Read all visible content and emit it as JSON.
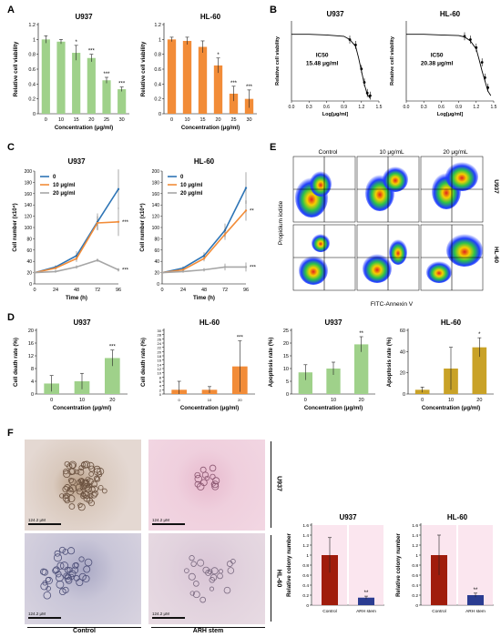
{
  "panel_labels": [
    "A",
    "B",
    "C",
    "D",
    "E",
    "F"
  ],
  "cell_line_labels": {
    "u937": "U937",
    "hl60": "HL-60"
  },
  "flow": {
    "col_labels": [
      "Control",
      "10 μg/mL",
      "20 μg/mL"
    ],
    "row_labels": [
      "U937",
      "HL-60"
    ],
    "xlabel": "FITC-Annexin V",
    "ylabel": "Propidium iodide"
  },
  "micro": {
    "scale_text": "124.2 μM",
    "col_labels": [
      "Control",
      "ARH stem"
    ],
    "row_labels": [
      "U937",
      "HL-60"
    ]
  },
  "colors": {
    "green": "#9fd18a",
    "orange": "#f28c38",
    "olive": "#c9a227",
    "darkred": "#a01c0c",
    "navy": "#2b3c91",
    "blue": "#2e75b6",
    "gray": "#a6a6a6",
    "pink": "#f9d5e5"
  },
  "chart_data": [
    {
      "id": "A1",
      "type": "bar",
      "title": "U937",
      "categories": [
        "0",
        "10",
        "15",
        "20",
        "25",
        "30"
      ],
      "values": [
        1.0,
        0.97,
        0.82,
        0.75,
        0.45,
        0.33
      ],
      "errors": [
        0.05,
        0.03,
        0.1,
        0.05,
        0.04,
        0.03
      ],
      "sig": [
        "",
        "",
        "*",
        "***",
        "***",
        "***"
      ],
      "ylim": [
        0,
        1.2
      ],
      "yticks": [
        "0",
        "0.2",
        "0.4",
        "0.6",
        "0.8",
        "1",
        "1.2"
      ],
      "xlabel": "Concentration (μg/ml)",
      "ylabel": "Relative cell viability",
      "color": "green"
    },
    {
      "id": "A2",
      "type": "bar",
      "title": "HL-60",
      "categories": [
        "0",
        "10",
        "15",
        "20",
        "25",
        "30"
      ],
      "values": [
        1.0,
        0.98,
        0.9,
        0.65,
        0.27,
        0.2
      ],
      "errors": [
        0.03,
        0.05,
        0.08,
        0.1,
        0.1,
        0.12
      ],
      "sig": [
        "",
        "",
        "",
        "*",
        "***",
        "***"
      ],
      "ylim": [
        0,
        1.2
      ],
      "yticks": [
        "0",
        "0.2",
        "0.4",
        "0.6",
        "0.8",
        "1",
        "1.2"
      ],
      "xlabel": "Concentration (μg/ml)",
      "ylabel": "Relative cell viability",
      "color": "orange"
    },
    {
      "id": "B1",
      "type": "line",
      "title": "U937",
      "x": [
        0.0,
        0.3,
        0.6,
        0.9,
        1.0,
        1.1,
        1.15,
        1.2,
        1.25,
        1.3,
        1.35
      ],
      "y": [
        100,
        100,
        99,
        97,
        92,
        82,
        65,
        45,
        25,
        10,
        4
      ],
      "xlim": [
        0,
        1.5
      ],
      "ylim": [
        0,
        120
      ],
      "xticks": [
        "0.0",
        "0.3",
        "0.6",
        "0.9",
        "1.2",
        "1.5"
      ],
      "xlabel": "Log[μg/ml]",
      "ylabel": "Relative cell viability",
      "annotation": "IC50\n15.48 μg/ml",
      "points": [
        [
          1.0,
          92
        ],
        [
          1.1,
          84
        ],
        [
          1.2,
          48
        ],
        [
          1.25,
          28
        ],
        [
          1.3,
          12
        ],
        [
          1.35,
          8
        ]
      ]
    },
    {
      "id": "B2",
      "type": "line",
      "title": "HL-60",
      "x": [
        0.0,
        0.3,
        0.6,
        0.9,
        1.0,
        1.1,
        1.2,
        1.25,
        1.3,
        1.35,
        1.4,
        1.45
      ],
      "y": [
        100,
        100,
        99,
        98,
        96,
        90,
        78,
        62,
        45,
        30,
        15,
        8
      ],
      "xlim": [
        0,
        1.5
      ],
      "ylim": [
        0,
        120
      ],
      "xticks": [
        "0.0",
        "0.3",
        "0.6",
        "0.9",
        "1.2",
        "1.5"
      ],
      "xlabel": "Log[μg/ml]",
      "ylabel": "Relative cell viability",
      "annotation": "IC50\n20.38 μg/ml",
      "points": [
        [
          1.0,
          97
        ],
        [
          1.1,
          92
        ],
        [
          1.2,
          80
        ],
        [
          1.3,
          58
        ],
        [
          1.35,
          35
        ],
        [
          1.4,
          20
        ]
      ]
    },
    {
      "id": "C1",
      "type": "line",
      "title": "U937",
      "x": [
        0,
        24,
        48,
        72,
        96
      ],
      "series": [
        {
          "name": "0",
          "color": "blue",
          "values": [
            20,
            30,
            50,
            110,
            168
          ]
        },
        {
          "name": "10 μg/ml",
          "color": "orange",
          "values": [
            20,
            28,
            45,
            108,
            110
          ]
        },
        {
          "name": "20 μg/ml",
          "color": "gray",
          "values": [
            20,
            22,
            30,
            42,
            25
          ]
        }
      ],
      "errors": [
        [
          0,
          3,
          8,
          15,
          35
        ],
        [
          0,
          3,
          6,
          12,
          25
        ],
        [
          0,
          2,
          3,
          3,
          3
        ]
      ],
      "ylim": [
        0,
        200
      ],
      "yticks": [
        "0",
        "20",
        "40",
        "60",
        "80",
        "100",
        "120",
        "140",
        "160",
        "180",
        "200"
      ],
      "xticks": [
        "0",
        "24",
        "48",
        "72",
        "96"
      ],
      "xlabel": "Time (h)",
      "ylabel": "Cell number (x10⁴)",
      "sig": [
        "***",
        "***"
      ]
    },
    {
      "id": "C2",
      "type": "line",
      "title": "HL-60",
      "x": [
        0,
        24,
        48,
        72,
        96
      ],
      "series": [
        {
          "name": "0",
          "color": "blue",
          "values": [
            20,
            28,
            50,
            95,
            170
          ]
        },
        {
          "name": "10 μg/ml",
          "color": "orange",
          "values": [
            20,
            25,
            45,
            88,
            130
          ]
        },
        {
          "name": "20 μg/ml",
          "color": "gray",
          "values": [
            20,
            22,
            25,
            30,
            30
          ]
        }
      ],
      "errors": [
        [
          0,
          3,
          6,
          12,
          28
        ],
        [
          0,
          3,
          5,
          10,
          18
        ],
        [
          0,
          2,
          3,
          6,
          8
        ]
      ],
      "ylim": [
        0,
        200
      ],
      "yticks": [
        "0",
        "20",
        "40",
        "60",
        "80",
        "100",
        "120",
        "140",
        "160",
        "180",
        "200"
      ],
      "xticks": [
        "0",
        "24",
        "48",
        "72",
        "96"
      ],
      "xlabel": "Time (h)",
      "ylabel": "Cell number (x10⁴)",
      "sig": [
        "**",
        "***"
      ]
    },
    {
      "id": "D1",
      "type": "bar",
      "title": "U937",
      "categories": [
        "0",
        "10",
        "20"
      ],
      "values": [
        3.3,
        4.0,
        11.3
      ],
      "errors": [
        2.5,
        2.5,
        2.5
      ],
      "sig": [
        "",
        "",
        "***"
      ],
      "ylim": [
        0,
        20
      ],
      "yticks": [
        "0",
        "4",
        "8",
        "12",
        "16",
        "20"
      ],
      "xlabel": "Concentration (μg/ml)",
      "ylabel": "Cell death rate (%)",
      "color": "green"
    },
    {
      "id": "D2",
      "type": "bar",
      "title": "HL-60",
      "categories": [
        "0",
        "10",
        "20"
      ],
      "values": [
        2.0,
        2.0,
        13.0
      ],
      "errors": [
        4.0,
        1.5,
        12.0
      ],
      "sig": [
        "",
        "",
        "***"
      ],
      "ylim": [
        0,
        30
      ],
      "yticks": [
        "0",
        "2",
        "4",
        "6",
        "8",
        "10",
        "12",
        "14",
        "16",
        "18",
        "20",
        "22",
        "24",
        "26",
        "28",
        "30"
      ],
      "xlabel": "Concentration (μg/ml)",
      "ylabel": "Cell death rate (%)",
      "color": "orange"
    },
    {
      "id": "D3",
      "type": "bar",
      "title": "U937",
      "categories": [
        "0",
        "10",
        "20"
      ],
      "values": [
        8.5,
        10.0,
        19.5
      ],
      "errors": [
        3.0,
        2.5,
        3.0
      ],
      "sig": [
        "",
        "",
        "**"
      ],
      "ylim": [
        0,
        25
      ],
      "yticks": [
        "0",
        "5",
        "10",
        "15",
        "20",
        "25"
      ],
      "xlabel": "Concentration (μg/ml)",
      "ylabel": "Apoptosis rate (%)",
      "color": "green"
    },
    {
      "id": "D4",
      "type": "bar",
      "title": "HL-60",
      "categories": [
        "0",
        "10",
        "20"
      ],
      "values": [
        4.0,
        24.0,
        44.0
      ],
      "errors": [
        2.5,
        20.0,
        9.0
      ],
      "sig": [
        "",
        "",
        "*"
      ],
      "ylim": [
        0,
        60
      ],
      "yticks": [
        "0",
        "20",
        "40",
        "60"
      ],
      "xlabel": "Concentration (μg/ml)",
      "ylabel": "Apoptosis rate (%)",
      "color": "olive"
    },
    {
      "id": "F1",
      "type": "bar",
      "title": "U937",
      "categories": [
        "Control",
        "ARH stem"
      ],
      "values": [
        1.0,
        0.15
      ],
      "errors": [
        0.35,
        0.03
      ],
      "colors": [
        "darkred",
        "navy"
      ],
      "sig": [
        "",
        "**"
      ],
      "ylim": [
        0,
        1.6
      ],
      "yticks": [
        "0",
        "0.2",
        "0.4",
        "0.6",
        "0.8",
        "1",
        "1.2",
        "1.4",
        "1.6"
      ],
      "xlabel": "",
      "ylabel": "Relative colony number"
    },
    {
      "id": "F2",
      "type": "bar",
      "title": "HL-60",
      "categories": [
        "Control",
        "ARH stem"
      ],
      "values": [
        1.0,
        0.2
      ],
      "errors": [
        0.4,
        0.04
      ],
      "colors": [
        "darkred",
        "navy"
      ],
      "sig": [
        "",
        "**"
      ],
      "ylim": [
        0,
        1.6
      ],
      "yticks": [
        "0",
        "0.2",
        "0.4",
        "0.6",
        "0.8",
        "1",
        "1.2",
        "1.4",
        "1.6"
      ],
      "xlabel": "",
      "ylabel": "Relative colony number"
    }
  ]
}
